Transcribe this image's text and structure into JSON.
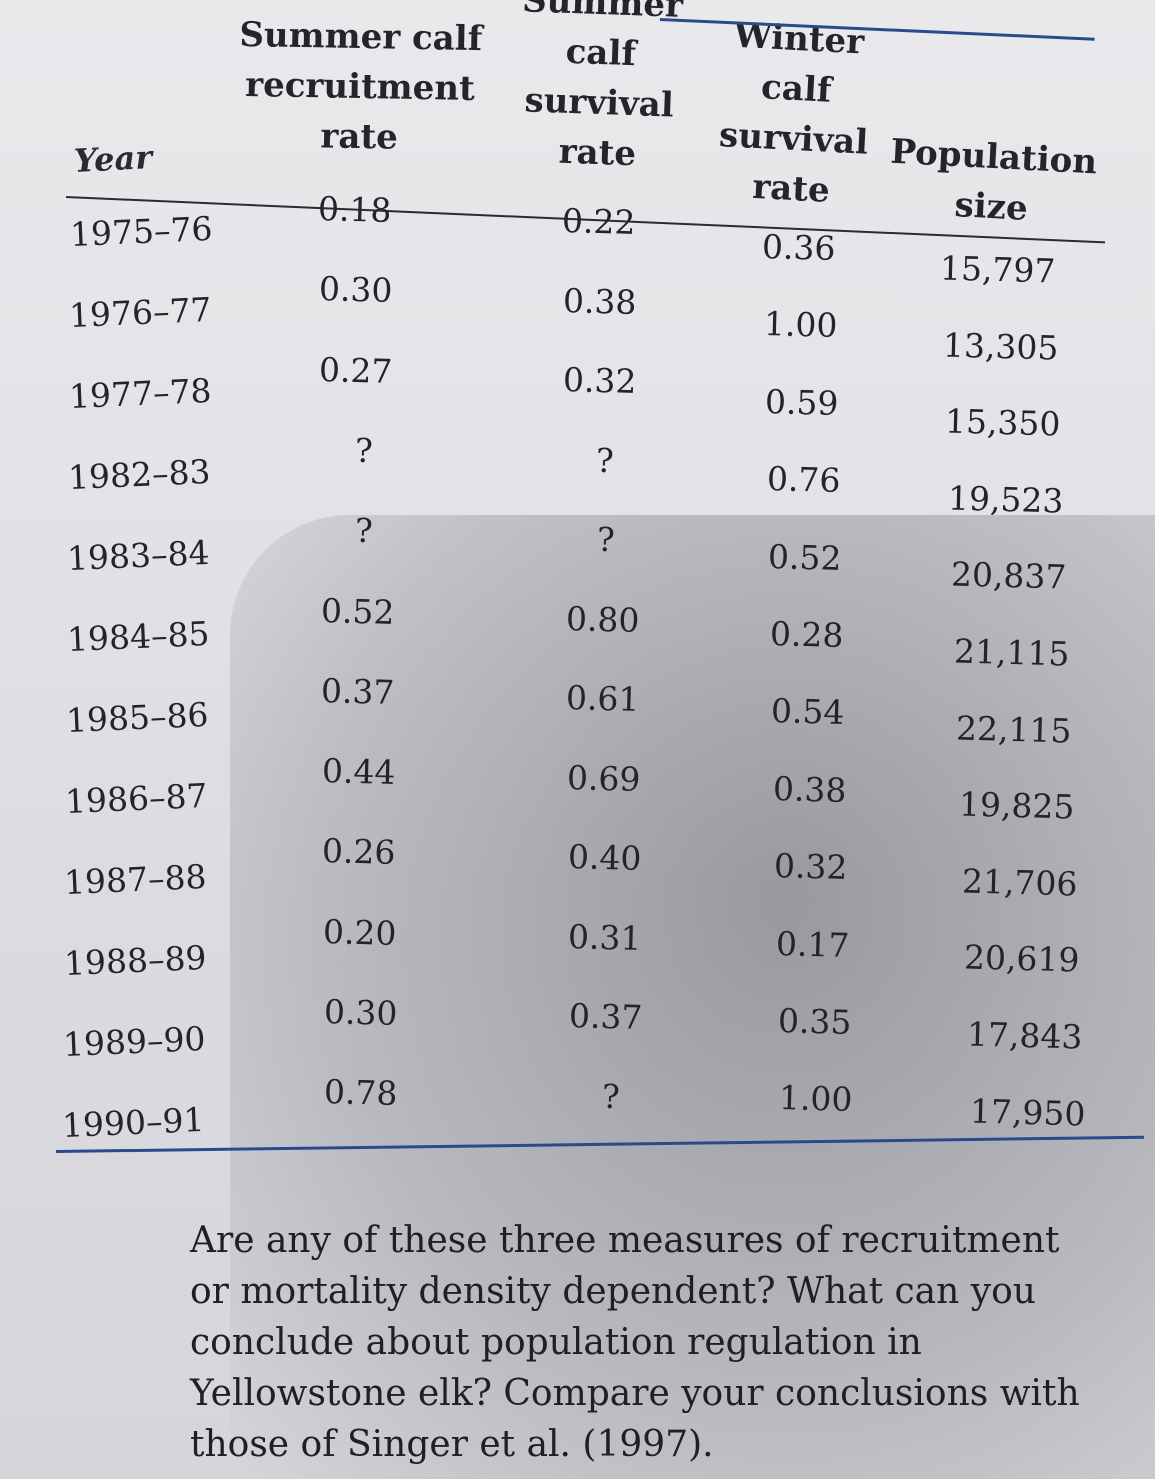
{
  "headers": {
    "year": "Year",
    "summer_recruitment": [
      "Summer calf",
      "recruitment",
      "rate"
    ],
    "summer_survival": [
      "Summer",
      "calf",
      "survival",
      "rate"
    ],
    "winter_survival": [
      "Winter",
      "calf",
      "survival",
      "rate"
    ],
    "population": [
      "Population",
      "size"
    ]
  },
  "rows": [
    {
      "year": "1975–76",
      "recruit": "0.18",
      "summer": "0.22",
      "winter": "0.36",
      "pop": "15,797"
    },
    {
      "year": "1976–77",
      "recruit": "0.30",
      "summer": "0.38",
      "winter": "1.00",
      "pop": "13,305"
    },
    {
      "year": "1977–78",
      "recruit": "0.27",
      "summer": "0.32",
      "winter": "0.59",
      "pop": "15,350"
    },
    {
      "year": "1982–83",
      "recruit": "?",
      "summer": "?",
      "winter": "0.76",
      "pop": "19,523"
    },
    {
      "year": "1983–84",
      "recruit": "?",
      "summer": "?",
      "winter": "0.52",
      "pop": "20,837"
    },
    {
      "year": "1984–85",
      "recruit": "0.52",
      "summer": "0.80",
      "winter": "0.28",
      "pop": "21,115"
    },
    {
      "year": "1985–86",
      "recruit": "0.37",
      "summer": "0.61",
      "winter": "0.54",
      "pop": "22,115"
    },
    {
      "year": "1986–87",
      "recruit": "0.44",
      "summer": "0.69",
      "winter": "0.38",
      "pop": "19,825"
    },
    {
      "year": "1987–88",
      "recruit": "0.26",
      "summer": "0.40",
      "winter": "0.32",
      "pop": "21,706"
    },
    {
      "year": "1988–89",
      "recruit": "0.20",
      "summer": "0.31",
      "winter": "0.17",
      "pop": "20,619"
    },
    {
      "year": "1989–90",
      "recruit": "0.30",
      "summer": "0.37",
      "winter": "0.35",
      "pop": "17,843"
    },
    {
      "year": "1990–91",
      "recruit": "0.78",
      "summer": "?",
      "winter": "1.00",
      "pop": "17,950"
    }
  ],
  "question": "Are any of these three measures of recruitment or mortality density dependent? What can you conclude about population regulation in Yellowstone elk? Compare your conclusions with those of Singer et al. (1997)."
}
